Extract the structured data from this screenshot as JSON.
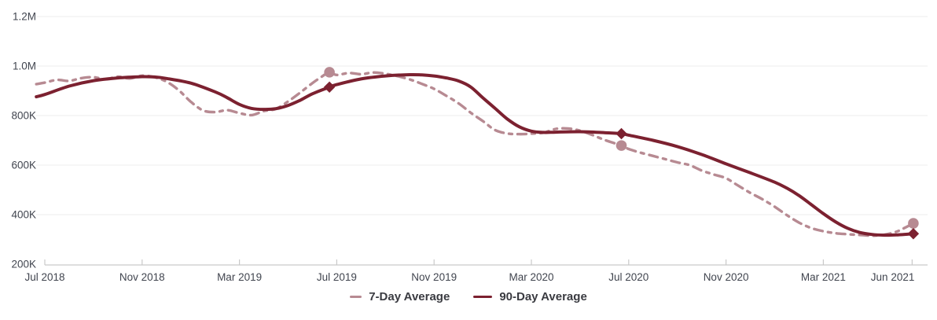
{
  "chart_data": {
    "type": "line",
    "title": "",
    "value_units": "thousands (K) shown on y-axis",
    "y_axis": {
      "min_k": 200,
      "max_k": 1200,
      "tick_values_k": [
        1200,
        1000,
        800,
        600,
        400,
        200
      ],
      "tick_labels": [
        "1.2M",
        "1.0M",
        "800K",
        "600K",
        "400K",
        "200K"
      ],
      "grid": true
    },
    "x_axis": {
      "start": "Jul 2018",
      "end": "Jun 2021",
      "tick_labels": [
        "Jul 2018",
        "Nov 2018",
        "Mar 2019",
        "Jul 2019",
        "Nov 2019",
        "Mar 2020",
        "Jul 2020",
        "Nov 2020",
        "Mar 2021",
        "Jun 2021"
      ],
      "tick_month_offsets": [
        0,
        4,
        8,
        12,
        16,
        20,
        24,
        28,
        32,
        35.65
      ]
    },
    "legend": {
      "position": "bottom-center"
    },
    "series": [
      {
        "name": "7-Day Average",
        "style": "dashed",
        "color": "#b78a92",
        "marker_shape": "circle",
        "points": [
          [
            -0.35,
            927
          ],
          [
            0,
            933
          ],
          [
            0.5,
            944
          ],
          [
            1,
            940
          ],
          [
            1.5,
            951
          ],
          [
            2,
            955
          ],
          [
            2.5,
            947
          ],
          [
            3,
            957
          ],
          [
            3.5,
            950
          ],
          [
            4,
            961
          ],
          [
            4.5,
            955
          ],
          [
            5,
            937
          ],
          [
            5.5,
            903
          ],
          [
            6,
            856
          ],
          [
            6.5,
            821
          ],
          [
            7,
            814
          ],
          [
            7.5,
            822
          ],
          [
            8,
            810
          ],
          [
            8.5,
            802
          ],
          [
            9,
            818
          ],
          [
            9.5,
            827
          ],
          [
            10,
            857
          ],
          [
            10.5,
            893
          ],
          [
            11,
            931
          ],
          [
            11.4,
            958
          ],
          [
            11.7,
            975
          ],
          [
            12,
            964
          ],
          [
            12.5,
            972
          ],
          [
            13,
            967
          ],
          [
            13.5,
            974
          ],
          [
            14,
            969
          ],
          [
            14.5,
            959
          ],
          [
            15,
            946
          ],
          [
            15.5,
            928
          ],
          [
            16,
            908
          ],
          [
            16.5,
            880
          ],
          [
            17,
            850
          ],
          [
            17.5,
            812
          ],
          [
            18,
            778
          ],
          [
            18.5,
            742
          ],
          [
            19,
            728
          ],
          [
            19.5,
            725
          ],
          [
            20,
            727
          ],
          [
            20.5,
            731
          ],
          [
            21,
            746
          ],
          [
            21.5,
            748
          ],
          [
            22,
            739
          ],
          [
            22.5,
            722
          ],
          [
            23,
            702
          ],
          [
            23.7,
            679
          ],
          [
            24,
            665
          ],
          [
            24.5,
            650
          ],
          [
            25,
            637
          ],
          [
            25.5,
            624
          ],
          [
            26,
            611
          ],
          [
            26.5,
            600
          ],
          [
            27,
            578
          ],
          [
            27.5,
            562
          ],
          [
            28,
            547
          ],
          [
            28.5,
            517
          ],
          [
            29,
            488
          ],
          [
            29.5,
            462
          ],
          [
            30,
            432
          ],
          [
            30.5,
            398
          ],
          [
            31,
            368
          ],
          [
            31.5,
            346
          ],
          [
            32,
            333
          ],
          [
            32.5,
            325
          ],
          [
            33,
            321
          ],
          [
            33.5,
            318
          ],
          [
            34,
            315
          ],
          [
            34.5,
            319
          ],
          [
            35,
            331
          ],
          [
            35.35,
            347
          ],
          [
            35.7,
            365
          ]
        ],
        "highlight_markers": [
          [
            11.7,
            975
          ],
          [
            23.7,
            679
          ],
          [
            35.7,
            365
          ]
        ]
      },
      {
        "name": "90-Day Average",
        "style": "solid",
        "color": "#7c2130",
        "marker_shape": "diamond",
        "points": [
          [
            -0.35,
            876
          ],
          [
            0,
            885
          ],
          [
            1,
            919
          ],
          [
            2,
            941
          ],
          [
            3,
            952
          ],
          [
            4,
            957
          ],
          [
            4.5,
            956
          ],
          [
            5,
            950
          ],
          [
            6,
            931
          ],
          [
            7,
            896
          ],
          [
            7.5,
            872
          ],
          [
            8,
            845
          ],
          [
            8.5,
            829
          ],
          [
            9,
            825
          ],
          [
            9.5,
            828
          ],
          [
            10,
            841
          ],
          [
            10.5,
            862
          ],
          [
            11,
            888
          ],
          [
            11.7,
            915
          ],
          [
            12,
            925
          ],
          [
            13,
            948
          ],
          [
            14,
            960
          ],
          [
            15,
            965
          ],
          [
            15.5,
            964
          ],
          [
            16,
            960
          ],
          [
            16.5,
            952
          ],
          [
            17,
            940
          ],
          [
            17.5,
            916
          ],
          [
            18,
            872
          ],
          [
            18.5,
            830
          ],
          [
            19,
            787
          ],
          [
            19.5,
            755
          ],
          [
            20,
            737
          ],
          [
            20.5,
            732
          ],
          [
            21,
            733
          ],
          [
            22,
            735
          ],
          [
            23,
            731
          ],
          [
            23.7,
            727
          ],
          [
            24,
            721
          ],
          [
            25,
            700
          ],
          [
            26,
            675
          ],
          [
            27,
            643
          ],
          [
            28,
            605
          ],
          [
            29,
            569
          ],
          [
            30,
            531
          ],
          [
            30.5,
            507
          ],
          [
            31,
            477
          ],
          [
            31.5,
            441
          ],
          [
            32,
            404
          ],
          [
            32.5,
            371
          ],
          [
            33,
            345
          ],
          [
            33.5,
            328
          ],
          [
            34,
            320
          ],
          [
            34.5,
            317
          ],
          [
            35,
            318
          ],
          [
            35.7,
            323
          ]
        ],
        "highlight_markers": [
          [
            11.7,
            915
          ],
          [
            23.7,
            727
          ],
          [
            35.7,
            323
          ]
        ]
      }
    ],
    "colors": {
      "grid_line": "#ececec",
      "axis_line": "#c9c9c9",
      "axis_text": "#41454f",
      "background": "#ffffff"
    }
  }
}
